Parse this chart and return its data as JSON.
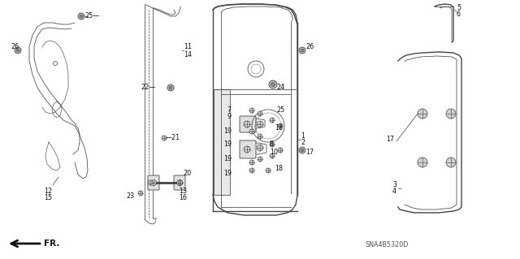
{
  "bg_color": "#ffffff",
  "diagram_code": "SNA4B5320D",
  "lc": "#444444",
  "lw_main": 1.0,
  "lw_thin": 0.55,
  "fs_label": 5.8,
  "tc": "#111111"
}
